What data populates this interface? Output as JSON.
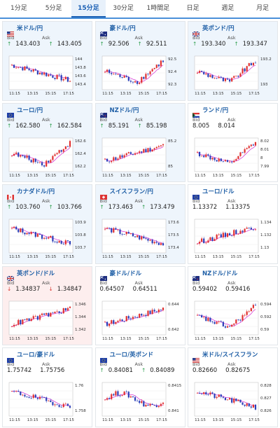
{
  "tabs": [
    "1分足",
    "5分足",
    "15分足",
    "30分足",
    "1時間足",
    "日足",
    "週足",
    "月足"
  ],
  "active_tab": 2,
  "labels": {
    "bid": "Bid",
    "ask": "Ask"
  },
  "colors": {
    "up": "#2a9d4a",
    "down": "#d9342b",
    "candle_up": "#e03030",
    "candle_down": "#2b3fb8",
    "ma": "#d946d9",
    "title": "#1f5fa6"
  },
  "cards": [
    {
      "name": "米ドル/円",
      "flag": "us",
      "bid": "143.403",
      "ask": "143.405",
      "dir": "up",
      "hl": "blue",
      "yticks": [
        "144",
        "143.8",
        "143.6",
        "143.4"
      ],
      "xticks": [
        "11:15",
        "13:15",
        "15:15",
        "17:15"
      ],
      "trend": "down"
    },
    {
      "name": "豪ドル/円",
      "flag": "au",
      "bid": "92.506",
      "ask": "92.511",
      "dir": "up",
      "hl": "blue",
      "yticks": [
        "92.5",
        "92.4",
        "92.3"
      ],
      "xticks": [
        "11:15",
        "13:15",
        "15:15",
        "17:15"
      ],
      "trend": "vup"
    },
    {
      "name": "英ポンド/円",
      "flag": "gb",
      "bid": "193.340",
      "ask": "193.347",
      "dir": "up",
      "hl": "blue",
      "yticks": [
        "193.2",
        "193"
      ],
      "xticks": [
        "11:15",
        "13:15",
        "15:15",
        "17:15"
      ],
      "trend": "vup"
    },
    {
      "name": "ユーロ/円",
      "flag": "eu",
      "bid": "162.580",
      "ask": "162.584",
      "dir": "up",
      "hl": "blue",
      "yticks": [
        "162.6",
        "162.4",
        "162.2"
      ],
      "xticks": [
        "11:15",
        "13:15",
        "15:15",
        "17:15"
      ],
      "trend": "vup"
    },
    {
      "name": "NZドル/円",
      "flag": "nz",
      "bid": "85.191",
      "ask": "85.198",
      "dir": "up",
      "hl": "blue",
      "yticks": [
        "85.2",
        "85"
      ],
      "xticks": [
        "11:15",
        "13:15",
        "15:15",
        "17:15"
      ],
      "trend": "up"
    },
    {
      "name": "ランド/円",
      "flag": "za",
      "bid": "8.005",
      "ask": "8.014",
      "dir": "none",
      "hl": "none",
      "yticks": [
        "8.02",
        "8.01",
        "8",
        "7.99"
      ],
      "xticks": [
        "11:15",
        "13:15",
        "15:15",
        "17:15"
      ],
      "trend": "vup"
    },
    {
      "name": "カナダドル/円",
      "flag": "ca",
      "bid": "103.760",
      "ask": "103.766",
      "dir": "up",
      "hl": "blue",
      "yticks": [
        "103.9",
        "103.8",
        "103.7"
      ],
      "xticks": [
        "11:15",
        "13:15",
        "15:15",
        "17:15"
      ],
      "trend": "down"
    },
    {
      "name": "スイスフラン/円",
      "flag": "ch",
      "bid": "173.463",
      "ask": "173.479",
      "dir": "up",
      "hl": "blue",
      "yticks": [
        "173.6",
        "173.5",
        "173.4"
      ],
      "xticks": [
        "11:15",
        "13:15",
        "15:15",
        "17:15"
      ],
      "trend": "down"
    },
    {
      "name": "ユーロ/ドル",
      "flag": "eu",
      "bid": "1.13372",
      "ask": "1.13375",
      "dir": "none",
      "hl": "none",
      "yticks": [
        "1.134",
        "1.132",
        "1.13"
      ],
      "xticks": [
        "11:15",
        "13:15",
        "15:15",
        "17:15"
      ],
      "trend": "up"
    },
    {
      "name": "英ポンド/ドル",
      "flag": "gb",
      "bid": "1.34837",
      "ask": "1.34847",
      "dir": "down",
      "hl": "red",
      "yticks": [
        "1.346",
        "1.344",
        "1.342"
      ],
      "xticks": [
        "11:15",
        "13:15",
        "15:15",
        "17:15"
      ],
      "trend": "up"
    },
    {
      "name": "豪ドル/ドル",
      "flag": "au",
      "bid": "0.64507",
      "ask": "0.64511",
      "dir": "none",
      "hl": "none",
      "yticks": [
        "0.644",
        "0.642"
      ],
      "xticks": [
        "11:15",
        "13:15",
        "15:15",
        "17:15"
      ],
      "trend": "up"
    },
    {
      "name": "NZドル/ドル",
      "flag": "nz",
      "bid": "0.59402",
      "ask": "0.59416",
      "dir": "none",
      "hl": "none",
      "yticks": [
        "0.594",
        "0.592",
        "0.59"
      ],
      "xticks": [
        "11:15",
        "13:15",
        "15:15",
        "17:15"
      ],
      "trend": "vup"
    },
    {
      "name": "ユーロ/豪ドル",
      "flag": "eu",
      "bid": "1.75742",
      "ask": "1.75756",
      "dir": "none",
      "hl": "none",
      "yticks": [
        "1.76",
        "1.758"
      ],
      "xticks": [
        "11:15",
        "13:15",
        "15:15",
        "17:15"
      ],
      "trend": "down"
    },
    {
      "name": "ユーロ/英ポンド",
      "flag": "eu",
      "bid": "0.84081",
      "ask": "0.84089",
      "dir": "up",
      "hl": "none",
      "yticks": [
        "0.8415",
        "0.841"
      ],
      "xticks": [
        "11:15",
        "13:15",
        "15:15",
        "17:15"
      ],
      "trend": "mid"
    },
    {
      "name": "米ドル/スイスフラン",
      "flag": "us",
      "bid": "0.82660",
      "ask": "0.82675",
      "dir": "none",
      "hl": "none",
      "yticks": [
        "0.828",
        "0.827",
        "0.826"
      ],
      "xticks": [
        "11:15",
        "13:15",
        "15:15",
        "17:15"
      ],
      "trend": "down"
    }
  ]
}
